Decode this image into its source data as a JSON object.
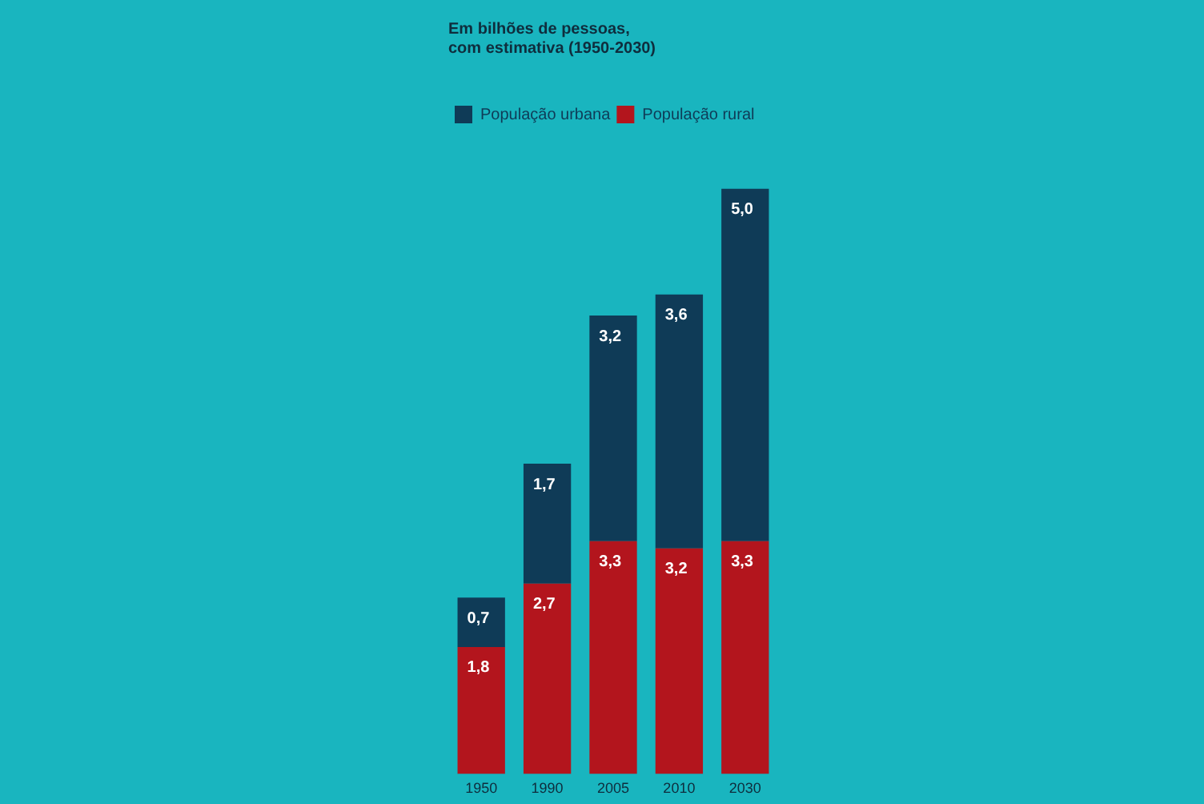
{
  "chart_data": {
    "type": "bar",
    "stacked": true,
    "title": "Em bilhões de pessoas,\ncom estimativa (1950-2030)",
    "categories": [
      "1950",
      "1990",
      "2005",
      "2010",
      "2030"
    ],
    "series": [
      {
        "name": "População rural",
        "color": "#b3151d",
        "values": [
          1.8,
          2.7,
          3.3,
          3.2,
          3.3
        ],
        "value_labels": [
          "1,8",
          "2,7",
          "3,3",
          "3,2",
          "3,3"
        ]
      },
      {
        "name": "População urbana",
        "color": "#0f3b57",
        "values": [
          0.7,
          1.7,
          3.2,
          3.6,
          5.0
        ],
        "value_labels": [
          "0,7",
          "1,7",
          "3,2",
          "3,6",
          "5,0"
        ]
      }
    ],
    "legend": "top left",
    "grid": false
  }
}
